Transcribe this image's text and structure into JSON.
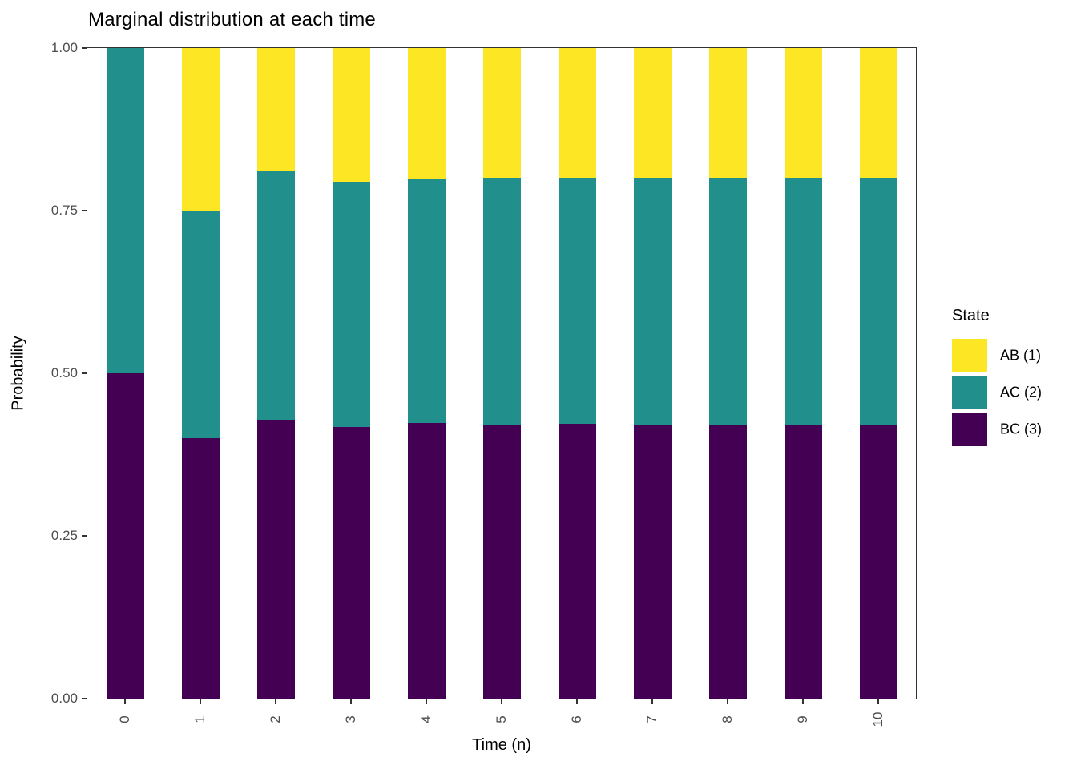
{
  "chart_data": {
    "type": "bar",
    "stacked": true,
    "title": "Marginal distribution at each time",
    "xlabel": "Time (n)",
    "ylabel": "Probability",
    "categories": [
      "0",
      "1",
      "2",
      "3",
      "4",
      "5",
      "6",
      "7",
      "8",
      "9",
      "10"
    ],
    "x_tick_angle": 90,
    "ylim": [
      0,
      1
    ],
    "y_tick_values": [
      0,
      0.25,
      0.5,
      0.75,
      1
    ],
    "y_tick_labels": [
      "0.00",
      "0.25",
      "0.50",
      "0.75",
      "1.00"
    ],
    "grid": false,
    "legend_position": "right",
    "legend_title": "State",
    "series": [
      {
        "name": "AB (1)",
        "color": "#FDE725",
        "values": [
          0.0,
          0.25,
          0.19,
          0.205,
          0.202,
          0.2,
          0.2,
          0.2,
          0.2,
          0.2,
          0.2
        ]
      },
      {
        "name": "AC (2)",
        "color": "#21908C",
        "values": [
          0.5,
          0.35,
          0.381,
          0.378,
          0.374,
          0.379,
          0.378,
          0.379,
          0.379,
          0.379,
          0.379
        ]
      },
      {
        "name": "BC (3)",
        "color": "#440154",
        "values": [
          0.5,
          0.4,
          0.429,
          0.417,
          0.424,
          0.421,
          0.422,
          0.421,
          0.421,
          0.421,
          0.421
        ]
      }
    ],
    "stack_order_bottom_to_top": [
      "BC (3)",
      "AC (2)",
      "AB (1)"
    ]
  },
  "colors": {
    "axis_text": "#4d4d4d",
    "axis_line": "#333333",
    "title_text": "#000000",
    "background": "#ffffff"
  }
}
